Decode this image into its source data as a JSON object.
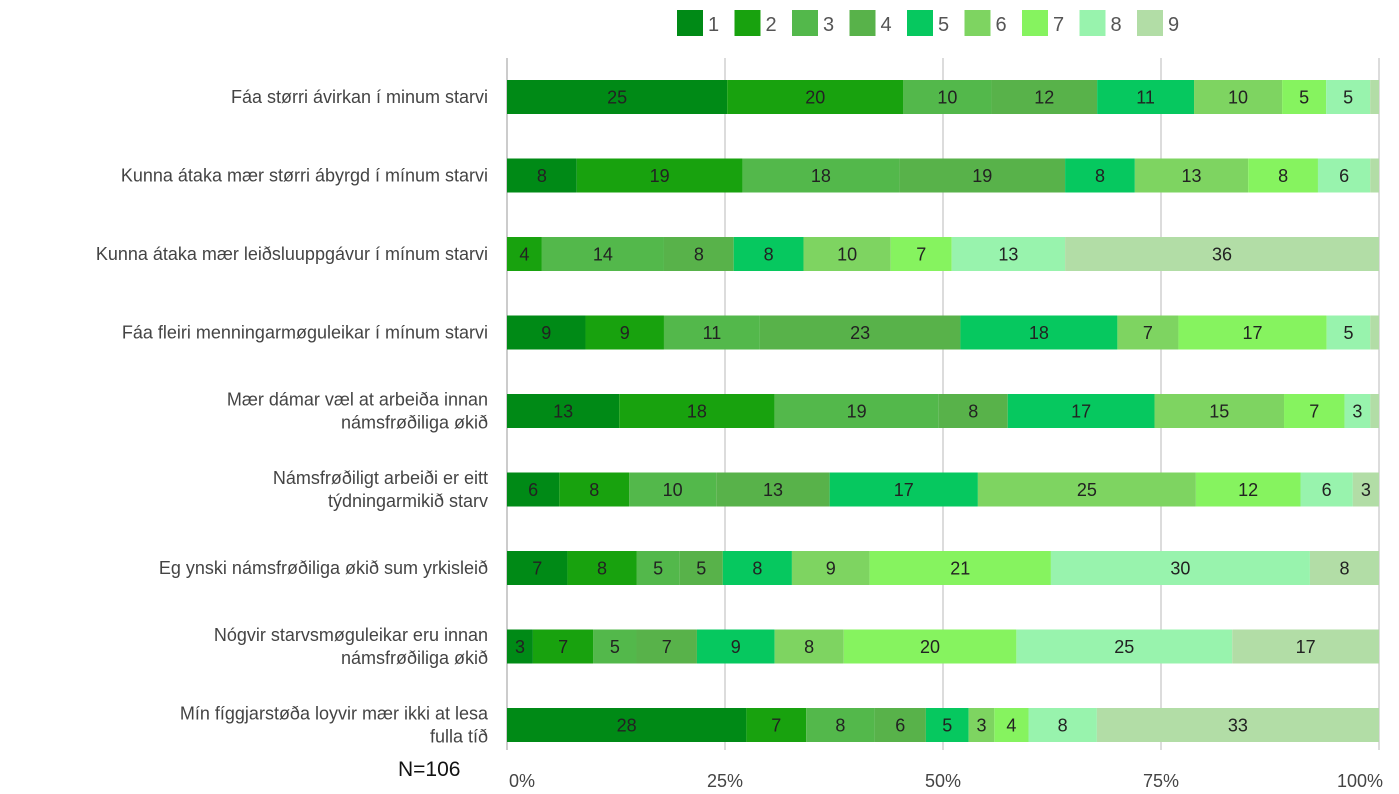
{
  "chart_data": {
    "type": "bar",
    "orientation": "horizontal",
    "stacked": "percent",
    "categories": [
      "Fáa størri ávirkan í minum starvi",
      "Kunna átaka mær størri ábyrgd í mínum starvi",
      "Kunna átaka mær leiðsluuppgávur í mínum starvi",
      "Fáa fleiri menningarmøguleikar í mínum starvi",
      "Mær dámar væl at arbeiða innan námsfrøðiliga økið",
      "Námsfrøðiligt arbeiði er eitt týdningarmikið starv",
      "Eg ynski námsfrøðiliga økið sum yrkisleið",
      "Nógvir starvsmøguleikar eru innan námsfrøðiliga økið",
      "Mín fíggjarstøða loyvir mær ikki at lesa fulla tíð"
    ],
    "series": [
      {
        "name": "1",
        "color": "#008a16",
        "values": [
          25,
          8,
          0,
          9,
          13,
          6,
          7,
          3,
          28
        ],
        "labels": [
          "25",
          "8",
          "",
          "9",
          "13",
          "6",
          "7",
          "3",
          "28"
        ]
      },
      {
        "name": "2",
        "color": "#18a20e",
        "values": [
          20,
          19,
          4,
          9,
          18,
          8,
          8,
          7,
          7
        ],
        "labels": [
          "20",
          "19",
          "4",
          "9",
          "18",
          "8",
          "8",
          "7",
          "7"
        ]
      },
      {
        "name": "3",
        "color": "#53b84b",
        "values": [
          10,
          18,
          14,
          11,
          19,
          10,
          5,
          5,
          8
        ],
        "labels": [
          "10",
          "18",
          "14",
          "11",
          "19",
          "10",
          "5",
          "5",
          "8"
        ]
      },
      {
        "name": "4",
        "color": "#58b24a",
        "values": [
          12,
          19,
          8,
          23,
          8,
          13,
          5,
          7,
          6
        ],
        "labels": [
          "12",
          "19",
          "8",
          "23",
          "8",
          "13",
          "5",
          "7",
          "6"
        ]
      },
      {
        "name": "5",
        "color": "#06c85f",
        "values": [
          11,
          8,
          8,
          18,
          17,
          17,
          8,
          9,
          5
        ],
        "labels": [
          "11",
          "8",
          "8",
          "18",
          "17",
          "17",
          "8",
          "9",
          "5"
        ]
      },
      {
        "name": "6",
        "color": "#7ed461",
        "values": [
          10,
          13,
          10,
          7,
          15,
          25,
          9,
          8,
          3
        ],
        "labels": [
          "10",
          "13",
          "10",
          "7",
          "15",
          "25",
          "9",
          "8",
          "3"
        ]
      },
      {
        "name": "7",
        "color": "#86f35f",
        "values": [
          5,
          8,
          7,
          17,
          7,
          12,
          21,
          20,
          4
        ],
        "labels": [
          "5",
          "8",
          "7",
          "17",
          "7",
          "12",
          "21",
          "20",
          "4"
        ]
      },
      {
        "name": "8",
        "color": "#98f3ad",
        "values": [
          5,
          6,
          13,
          5,
          3,
          6,
          30,
          25,
          8
        ],
        "labels": [
          "5",
          "6",
          "13",
          "5",
          "3",
          "6",
          "30",
          "25",
          "8"
        ]
      },
      {
        "name": "9",
        "color": "#b2dda6",
        "values": [
          1,
          1,
          36,
          1,
          1,
          3,
          8,
          17,
          33
        ],
        "labels": [
          "",
          "",
          "36",
          "",
          "",
          "3",
          "8",
          "17",
          "33"
        ]
      }
    ],
    "xlim": [
      0,
      100
    ],
    "x_ticks": [
      "0%",
      "25%",
      "50%",
      "75%",
      "100%"
    ],
    "grid": true,
    "legend_position": "top"
  },
  "note": "N=106"
}
